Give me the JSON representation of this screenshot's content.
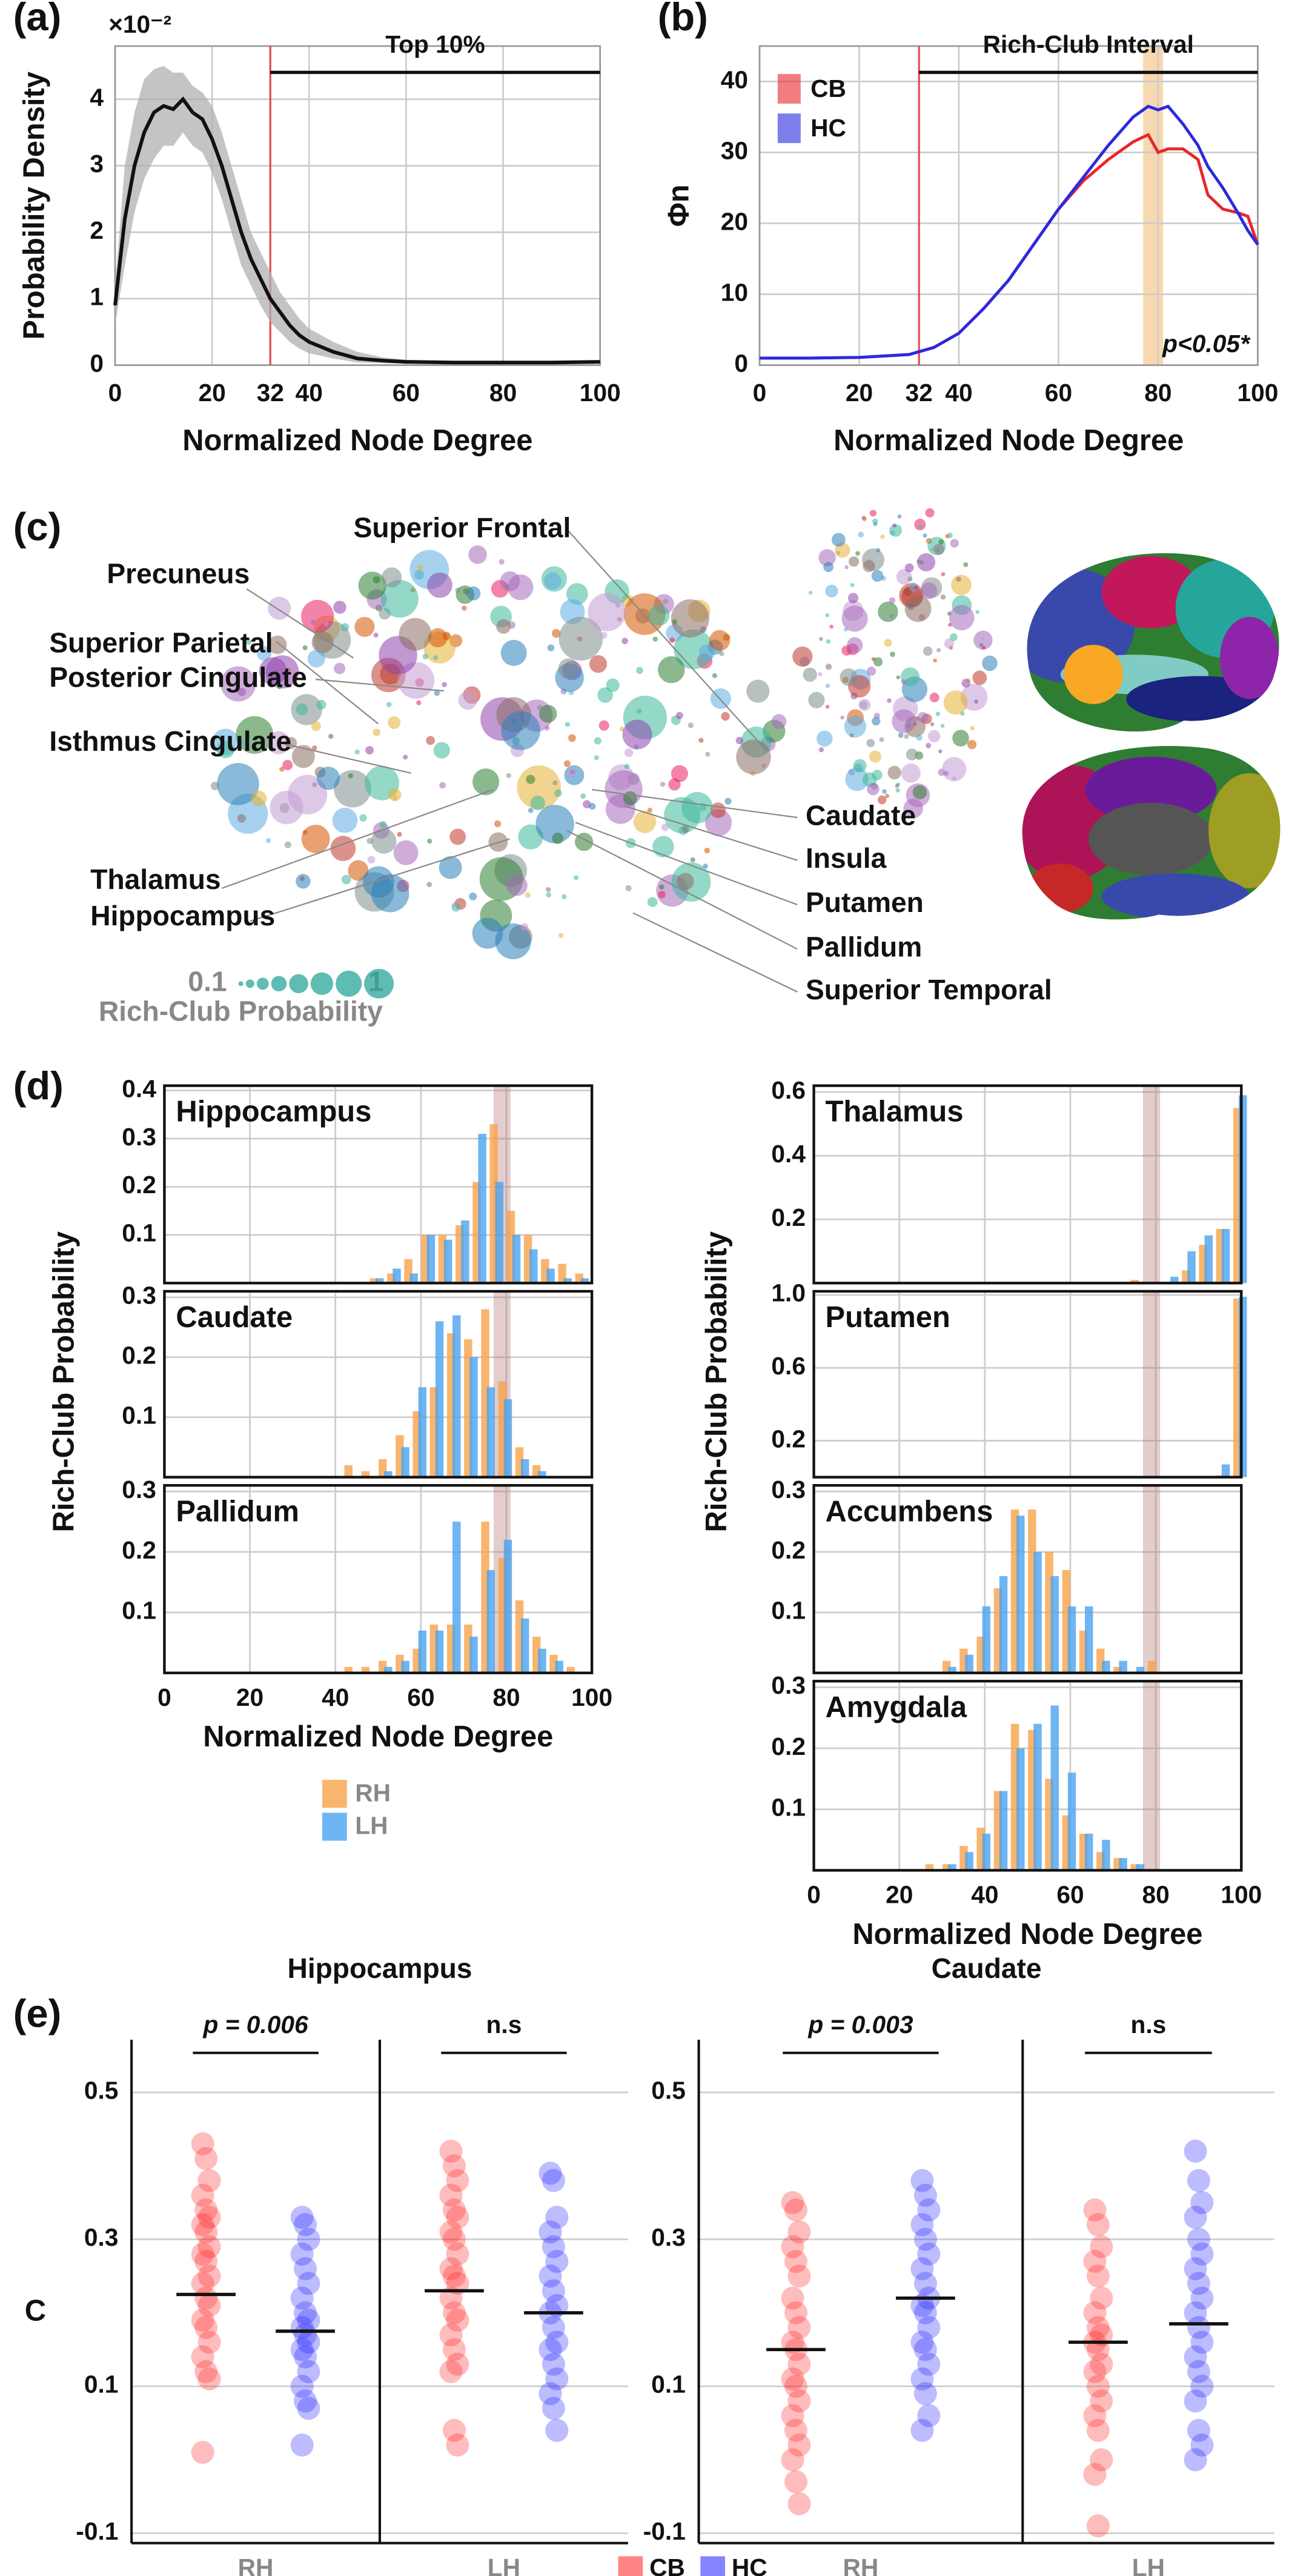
{
  "chart_data": [
    {
      "type": "line",
      "panel": "(a)",
      "xlabel": "Normalized Node Degree",
      "ylabel": "Probability Density",
      "y_multiplier": "×10⁻²",
      "annotation": "Top 10%",
      "threshold": 32,
      "x": [
        0,
        2,
        4,
        6,
        8,
        10,
        12,
        14,
        16,
        18,
        20,
        22,
        24,
        26,
        28,
        30,
        32,
        34,
        36,
        38,
        40,
        45,
        50,
        55,
        60,
        70,
        80,
        90,
        100
      ],
      "values": [
        0.9,
        2.2,
        3.0,
        3.5,
        3.8,
        3.9,
        3.85,
        4.0,
        3.8,
        3.7,
        3.4,
        3.0,
        2.5,
        2.0,
        1.6,
        1.3,
        1.0,
        0.8,
        0.6,
        0.45,
        0.35,
        0.2,
        0.1,
        0.07,
        0.05,
        0.04,
        0.04,
        0.04,
        0.05
      ],
      "upper": [
        1.2,
        3.0,
        3.8,
        4.3,
        4.45,
        4.5,
        4.4,
        4.4,
        4.2,
        4.1,
        3.9,
        3.5,
        3.0,
        2.5,
        2.0,
        1.7,
        1.4,
        1.1,
        0.9,
        0.7,
        0.55,
        0.35,
        0.2,
        0.12,
        0.08,
        0.06,
        0.06,
        0.06,
        0.07
      ],
      "lower": [
        0.6,
        1.5,
        2.3,
        2.8,
        3.1,
        3.3,
        3.3,
        3.5,
        3.3,
        3.2,
        2.9,
        2.5,
        2.0,
        1.5,
        1.2,
        0.9,
        0.65,
        0.5,
        0.35,
        0.25,
        0.18,
        0.1,
        0.04,
        0.03,
        0.02,
        0.02,
        0.02,
        0.02,
        0.03
      ],
      "color": "#111111",
      "band_color": "#b0b0b0",
      "threshold_color": "#e05050",
      "xlim": [
        0,
        100
      ],
      "ylim": [
        0,
        4.8
      ],
      "xticks": [
        0,
        20,
        32,
        40,
        60,
        80,
        100
      ],
      "yticks": [
        0,
        1,
        2,
        3,
        4
      ],
      "grid": true
    },
    {
      "type": "line",
      "panel": "(b)",
      "xlabel": "Normalized Node Degree",
      "ylabel": "Φn",
      "annotation": "Rich-Club Interval",
      "p_label": "p<0.05*",
      "threshold": 32,
      "interval": [
        77,
        81
      ],
      "interval_color": "#f5c88f",
      "x": [
        0,
        10,
        20,
        30,
        35,
        40,
        45,
        50,
        55,
        60,
        65,
        70,
        75,
        78,
        80,
        82,
        85,
        88,
        90,
        93,
        96,
        98,
        100
      ],
      "series": [
        {
          "name": "CB",
          "color": "#e8262a",
          "values": [
            1,
            1,
            1.1,
            1.5,
            2.5,
            4.5,
            8,
            12,
            17,
            22,
            26,
            29,
            31.5,
            32.5,
            30,
            30.5,
            30.5,
            29,
            24,
            22,
            21.5,
            21,
            17
          ]
        },
        {
          "name": "HC",
          "color": "#2a2ae0",
          "values": [
            1,
            1,
            1.1,
            1.5,
            2.5,
            4.5,
            8,
            12,
            17,
            22,
            26.5,
            31,
            35,
            36.5,
            36,
            36.5,
            34,
            31,
            28,
            25,
            21.5,
            19,
            17
          ]
        }
      ],
      "threshold_color": "#e05050",
      "legend": "upper left",
      "xlim": [
        0,
        100
      ],
      "ylim": [
        0,
        45
      ],
      "xticks": [
        0,
        20,
        32,
        40,
        60,
        80,
        100
      ],
      "yticks": [
        0,
        10,
        20,
        30,
        40
      ],
      "grid": true
    },
    {
      "type": "bubble",
      "panel": "(c)",
      "labels": [
        "Superior Frontal",
        "Precuneus",
        "Superior Parietal",
        "Posterior Cingulate",
        "Isthmus Cingulate",
        "Thalamus",
        "Hippocampus",
        "Caudate",
        "Insula",
        "Putamen",
        "Pallidum",
        "Superior Temporal"
      ],
      "size_legend": {
        "ticks": [
          0.1,
          1
        ],
        "label": "Rich-Club Probability",
        "color": "#2aa59a"
      }
    },
    {
      "type": "grouped-bar",
      "panel": "(d)",
      "xlabel": "Normalized Node Degree",
      "ylabel": "Rich-Club Probability",
      "legend": [
        {
          "name": "RH",
          "color": "#f7a24a"
        },
        {
          "name": "LH",
          "color": "#4aa3f0"
        }
      ],
      "interval": [
        77,
        81
      ],
      "interval_color": "#b07070",
      "xlim": [
        0,
        100
      ],
      "xticks": [
        0,
        20,
        40,
        60,
        80,
        100
      ],
      "grid": true,
      "charts": [
        {
          "title": "Hippocampus",
          "ylim": [
            0,
            0.41
          ],
          "yticks": [
            0.1,
            0.2,
            0.3,
            0.4
          ],
          "x": [
            50,
            54,
            58,
            62,
            66,
            70,
            74,
            78,
            82,
            86,
            90,
            94,
            98
          ],
          "series": [
            [
              0.01,
              0.02,
              0.05,
              0.1,
              0.1,
              0.12,
              0.21,
              0.33,
              0.15,
              0.1,
              0.05,
              0.04,
              0.02
            ],
            [
              0.01,
              0.03,
              0.02,
              0.1,
              0.09,
              0.13,
              0.31,
              0.21,
              0.1,
              0.07,
              0.03,
              0.01,
              0.01
            ]
          ]
        },
        {
          "title": "Caudate",
          "ylim": [
            0,
            0.31
          ],
          "yticks": [
            0.1,
            0.2,
            0.3
          ],
          "x": [
            44,
            48,
            52,
            56,
            60,
            64,
            68,
            72,
            76,
            80,
            84,
            88
          ],
          "series": [
            [
              0.02,
              0.01,
              0.03,
              0.07,
              0.11,
              0.15,
              0.24,
              0.23,
              0.28,
              0.16,
              0.05,
              0.02
            ],
            [
              0.0,
              0.0,
              0.01,
              0.05,
              0.15,
              0.26,
              0.27,
              0.2,
              0.15,
              0.13,
              0.03,
              0.01
            ]
          ]
        },
        {
          "title": "Pallidum",
          "ylim": [
            0,
            0.31
          ],
          "yticks": [
            0.1,
            0.2,
            0.3
          ],
          "x": [
            44,
            48,
            52,
            56,
            60,
            64,
            68,
            72,
            76,
            80,
            84,
            88,
            92,
            96
          ],
          "series": [
            [
              0.01,
              0.01,
              0.02,
              0.03,
              0.04,
              0.08,
              0.08,
              0.08,
              0.25,
              0.19,
              0.12,
              0.06,
              0.03,
              0.01
            ],
            [
              0.0,
              0.0,
              0.01,
              0.02,
              0.07,
              0.07,
              0.25,
              0.06,
              0.17,
              0.22,
              0.09,
              0.04,
              0.02,
              0.0
            ]
          ]
        },
        {
          "title": "Thalamus",
          "ylim": [
            0,
            0.62
          ],
          "yticks": [
            0.2,
            0.4,
            0.6
          ],
          "x": [
            76,
            84,
            88,
            92,
            96,
            100
          ],
          "series": [
            [
              0.01,
              0.0,
              0.04,
              0.12,
              0.17,
              0.55
            ],
            [
              0.0,
              0.02,
              0.1,
              0.15,
              0.17,
              0.59
            ]
          ]
        },
        {
          "title": "Putamen",
          "ylim": [
            0,
            1.02
          ],
          "yticks": [
            0.2,
            0.6,
            {
              "value": 1,
              "label": "1.0"
            }
          ],
          "x": [
            96,
            100
          ],
          "series": [
            [
              0.01,
              0.98
            ],
            [
              0.07,
              0.99
            ]
          ]
        },
        {
          "title": "Accumbens",
          "ylim": [
            0,
            0.31
          ],
          "yticks": [
            0.1,
            0.2,
            0.3
          ],
          "x": [
            32,
            36,
            40,
            44,
            48,
            52,
            56,
            60,
            64,
            68,
            72,
            76,
            80
          ],
          "series": [
            [
              0.02,
              0.04,
              0.06,
              0.14,
              0.27,
              0.27,
              0.2,
              0.17,
              0.07,
              0.04,
              0.01,
              0.0,
              0.02
            ],
            [
              0.01,
              0.03,
              0.11,
              0.16,
              0.26,
              0.2,
              0.16,
              0.11,
              0.11,
              0.02,
              0.02,
              0.01,
              0.0
            ]
          ]
        },
        {
          "title": "Amygdala",
          "ylim": [
            0,
            0.31
          ],
          "yticks": [
            0.1,
            0.2,
            0.3
          ],
          "x": [
            28,
            32,
            36,
            40,
            44,
            48,
            52,
            56,
            60,
            64,
            68,
            72,
            76,
            80
          ],
          "series": [
            [
              0.01,
              0.01,
              0.04,
              0.07,
              0.13,
              0.24,
              0.23,
              0.15,
              0.09,
              0.06,
              0.03,
              0.02,
              0.01,
              0.0
            ],
            [
              0.0,
              0.01,
              0.03,
              0.06,
              0.13,
              0.2,
              0.24,
              0.27,
              0.16,
              0.06,
              0.05,
              0.02,
              0.01,
              0.0
            ]
          ]
        }
      ]
    },
    {
      "type": "strip",
      "panel": "(e)",
      "ylabel": "C",
      "ylim": [
        -0.1,
        0.5
      ],
      "yticks": [
        -0.1,
        0.1,
        0.3,
        0.5
      ],
      "grid": true,
      "legend": [
        {
          "name": "CB",
          "color": "#ff2020"
        },
        {
          "name": "HC",
          "color": "#2020ff"
        }
      ],
      "groups": [
        {
          "title": "Hippocampus",
          "panels": [
            {
              "label": "RH",
              "p_label": "p = 0.006",
              "means": [
                0.225,
                0.175
              ],
              "series": [
                [
                  0.43,
                  0.41,
                  0.38,
                  0.36,
                  0.34,
                  0.33,
                  0.32,
                  0.31,
                  0.29,
                  0.28,
                  0.27,
                  0.25,
                  0.24,
                  0.22,
                  0.21,
                  0.19,
                  0.18,
                  0.16,
                  0.14,
                  0.12,
                  0.11,
                  0.01
                ],
                [
                  0.33,
                  0.32,
                  0.3,
                  0.28,
                  0.26,
                  0.24,
                  0.22,
                  0.2,
                  0.19,
                  0.18,
                  0.17,
                  0.16,
                  0.15,
                  0.14,
                  0.12,
                  0.1,
                  0.08,
                  0.07,
                  0.02
                ]
              ]
            },
            {
              "label": "LH",
              "p_label": "n.s",
              "means": [
                0.23,
                0.2
              ],
              "series": [
                [
                  0.42,
                  0.4,
                  0.38,
                  0.36,
                  0.34,
                  0.33,
                  0.31,
                  0.3,
                  0.28,
                  0.26,
                  0.25,
                  0.24,
                  0.22,
                  0.2,
                  0.19,
                  0.17,
                  0.15,
                  0.13,
                  0.12,
                  0.04,
                  0.02
                ],
                [
                  0.39,
                  0.38,
                  0.33,
                  0.31,
                  0.29,
                  0.27,
                  0.25,
                  0.23,
                  0.21,
                  0.2,
                  0.18,
                  0.16,
                  0.15,
                  0.13,
                  0.11,
                  0.09,
                  0.07,
                  0.04
                ]
              ]
            }
          ]
        },
        {
          "title": "Caudate",
          "panels": [
            {
              "label": "RH",
              "p_label": "p = 0.003",
              "means": [
                0.15,
                0.22
              ],
              "series": [
                [
                  0.35,
                  0.34,
                  0.31,
                  0.29,
                  0.27,
                  0.25,
                  0.22,
                  0.2,
                  0.18,
                  0.16,
                  0.15,
                  0.13,
                  0.11,
                  0.1,
                  0.08,
                  0.06,
                  0.04,
                  0.02,
                  0.0,
                  -0.03,
                  -0.06
                ],
                [
                  0.38,
                  0.36,
                  0.34,
                  0.32,
                  0.3,
                  0.28,
                  0.26,
                  0.24,
                  0.22,
                  0.21,
                  0.2,
                  0.18,
                  0.16,
                  0.15,
                  0.13,
                  0.11,
                  0.09,
                  0.06,
                  0.04
                ]
              ]
            },
            {
              "label": "LH",
              "p_label": "n.s",
              "means": [
                0.16,
                0.185
              ],
              "series": [
                [
                  0.34,
                  0.32,
                  0.29,
                  0.27,
                  0.25,
                  0.22,
                  0.2,
                  0.18,
                  0.17,
                  0.16,
                  0.15,
                  0.13,
                  0.12,
                  0.1,
                  0.08,
                  0.06,
                  0.04,
                  0.0,
                  -0.02,
                  -0.09
                ],
                [
                  0.42,
                  0.38,
                  0.35,
                  0.33,
                  0.3,
                  0.28,
                  0.26,
                  0.24,
                  0.22,
                  0.2,
                  0.18,
                  0.16,
                  0.14,
                  0.12,
                  0.1,
                  0.08,
                  0.04,
                  0.02,
                  0.0
                ]
              ]
            }
          ]
        }
      ]
    }
  ]
}
